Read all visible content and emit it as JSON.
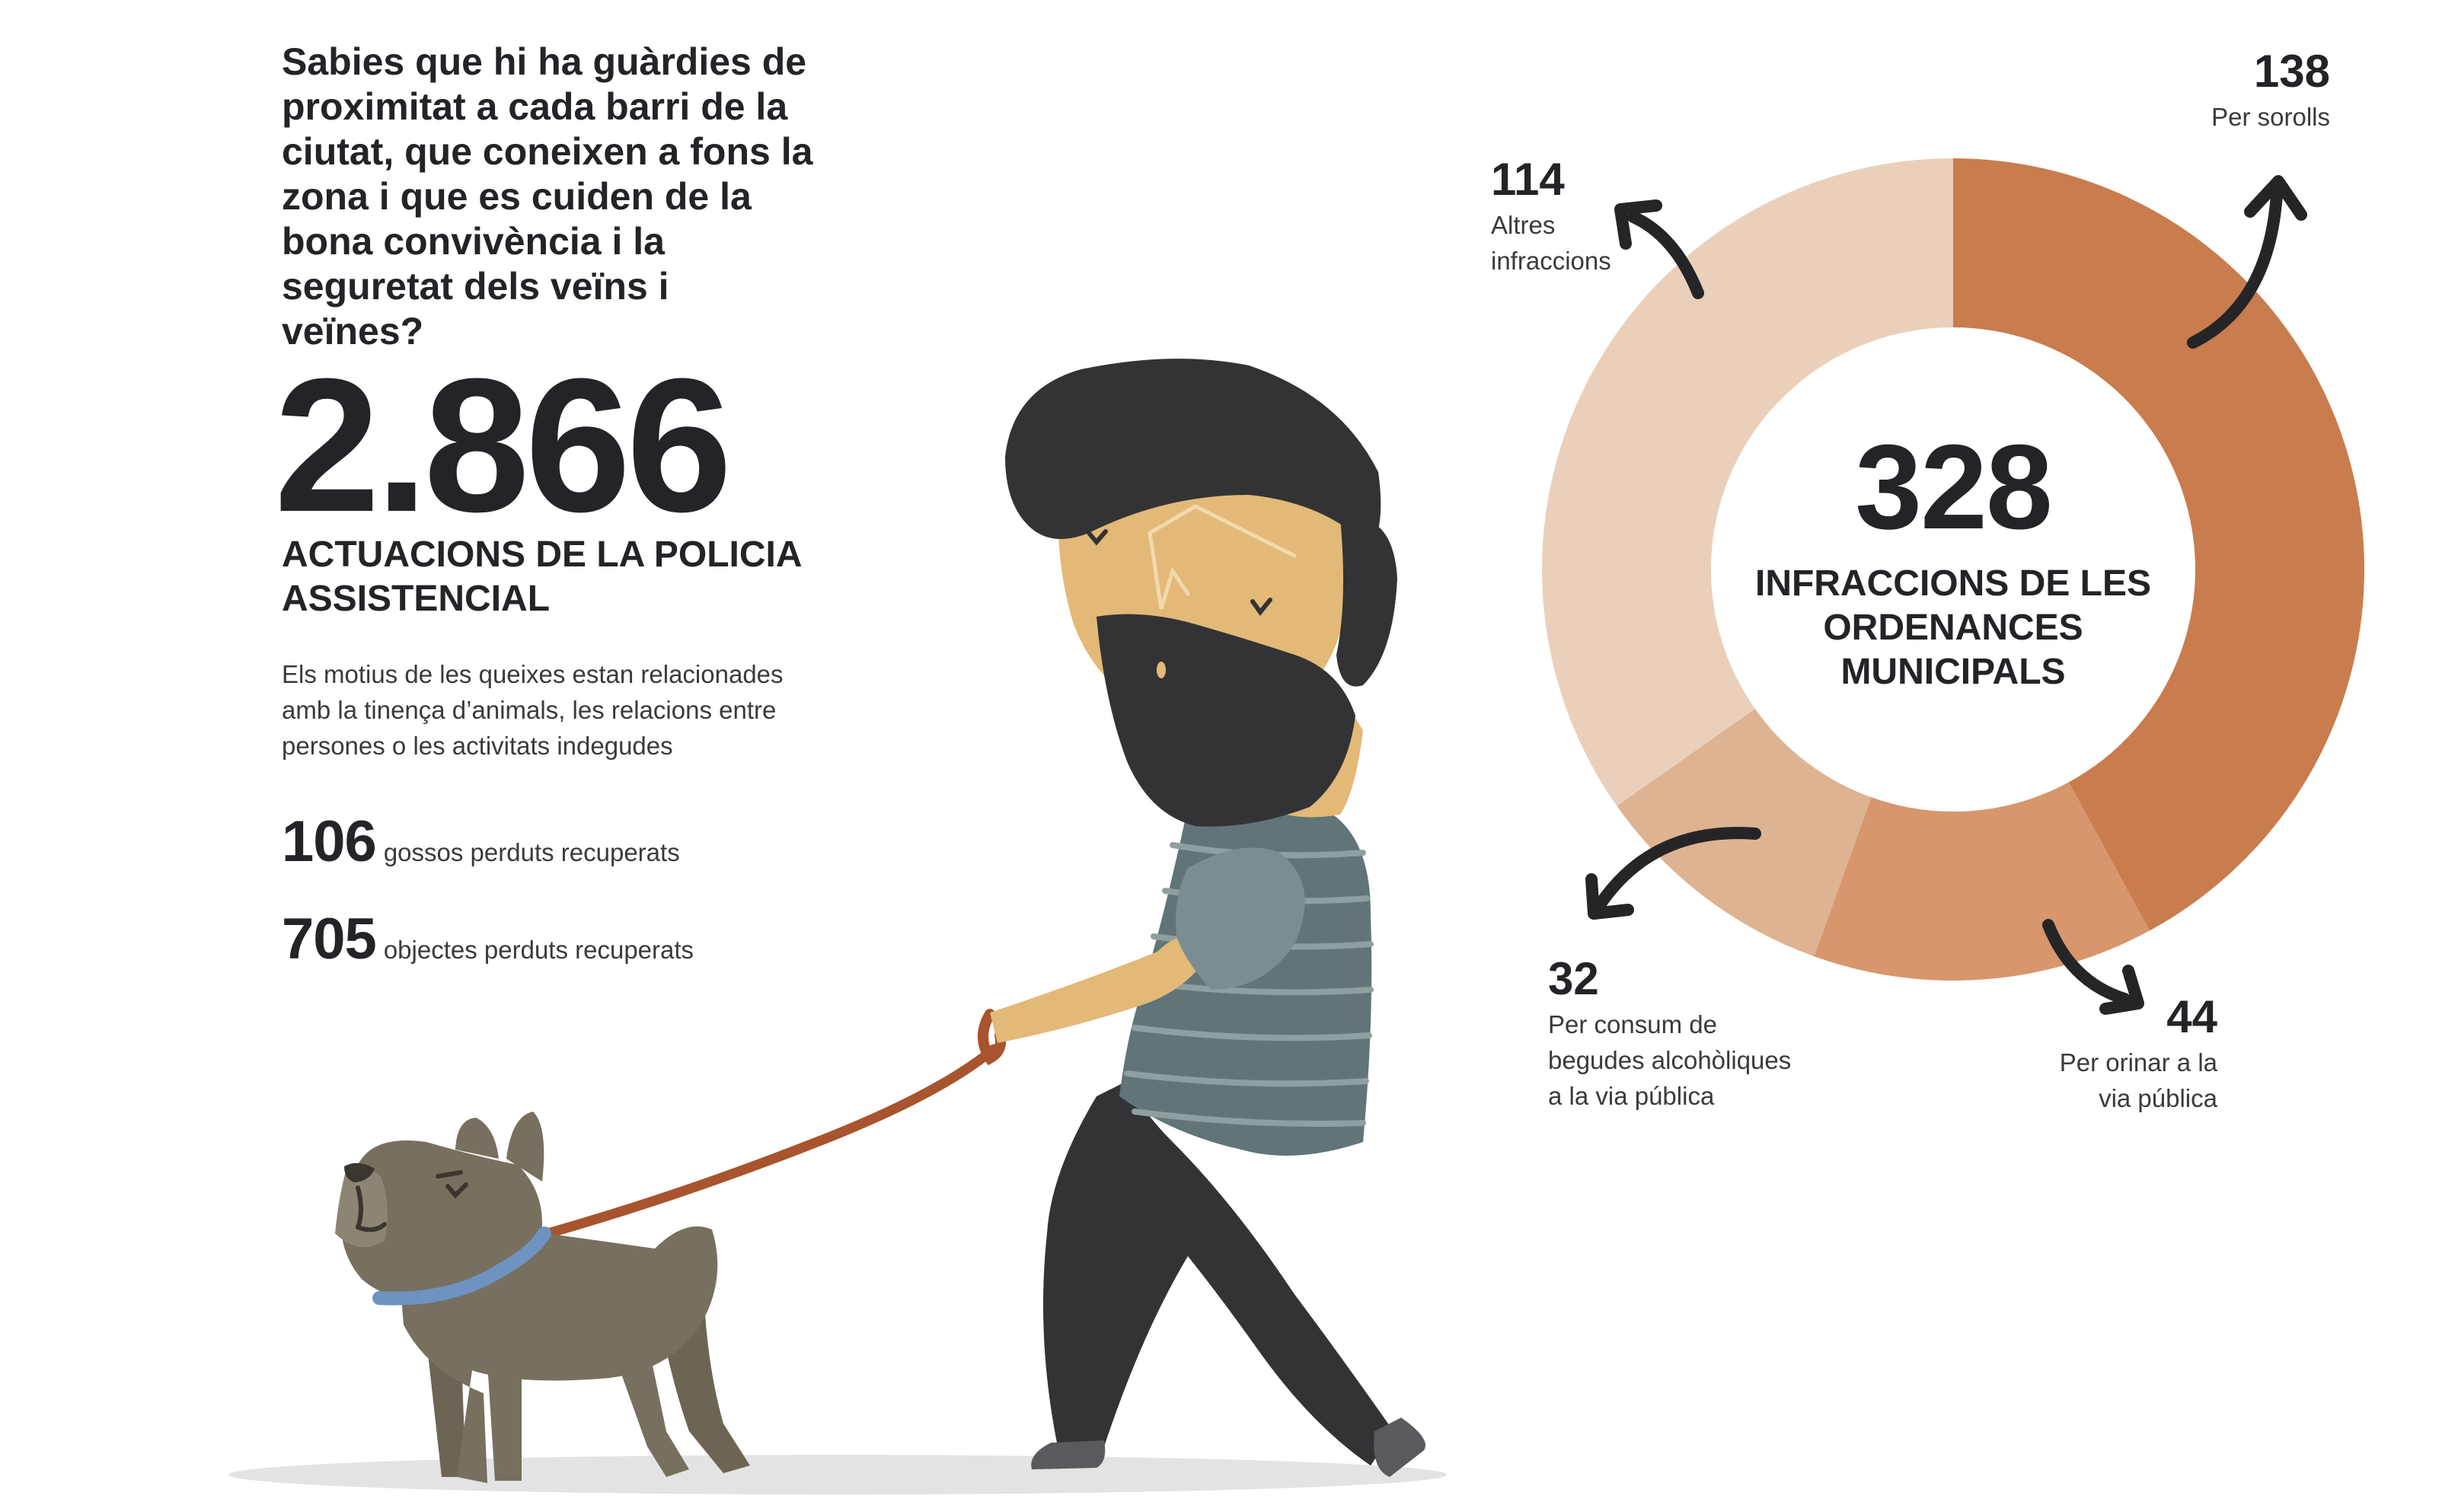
{
  "intro": {
    "text": "Sabies que hi ha guàrdies de proximitat a cada barri de la ciutat, que coneixen a fons la zona i que es cuiden de la bona convivència i la seguretat dels veïns i veïnes?"
  },
  "headline": {
    "number": "2.866",
    "label": "ACTUACIONS DE LA POLICIA ASSISTENCIAL",
    "description": "Els motius de les queixes estan relacionades amb la tinença d’animals, les relacions entre persones o les activitats indegudes"
  },
  "stats": [
    {
      "number": "106",
      "label": "gossos perduts recuperats"
    },
    {
      "number": "705",
      "label": "objectes perduts recuperats"
    }
  ],
  "colors": {
    "text_dark": "#232328",
    "skin": "#e3b978",
    "hair": "#333336",
    "shirt": "#617579",
    "shirt_stripe": "#8f9fa0",
    "dog": "#77705f",
    "collar": "#6e93c0",
    "leash": "#a8542e",
    "ground": "#e3e3e3",
    "arrow": "#252528"
  },
  "chart_data": {
    "type": "pie",
    "subtype": "donut",
    "total": "328",
    "total_label": "INFRACCIONS DE LES ORDENANCES MUNICIPALS",
    "slices": [
      {
        "value": 138,
        "label": "Per sorolls",
        "color": "#c97c4d"
      },
      {
        "value": 44,
        "label": "Per orinar a la via pública",
        "color": "#d7966c"
      },
      {
        "value": 32,
        "label": "Per consum de begudes alcohòliques a la via pública",
        "color": "#deb391"
      },
      {
        "value": 114,
        "label": "Altres infraccions",
        "color": "#ead0ba"
      }
    ]
  }
}
